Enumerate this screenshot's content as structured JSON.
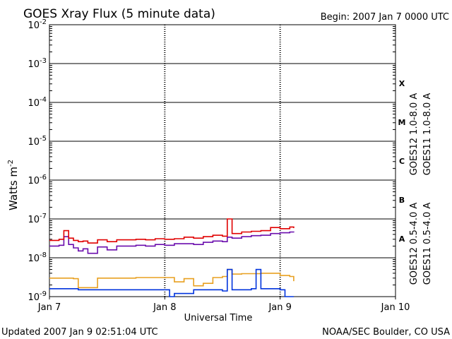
{
  "header": {
    "title": "GOES Xray Flux (5 minute data)",
    "begin": "Begin:  2007 Jan 7 0000 UTC"
  },
  "footer": {
    "updated": "Updated 2007 Jan  9 02:51:04 UTC",
    "credit": "NOAA/SEC Boulder, CO USA"
  },
  "chart_data": {
    "type": "line",
    "title": "GOES Xray Flux (5 minute data)",
    "xlabel": "Universal Time",
    "ylabel": "Watts m",
    "ylabel_sup": "-2",
    "y_scale": "log",
    "ylim": [
      1e-09,
      0.01
    ],
    "xlim": [
      "2007-01-07 00:00",
      "2007-01-10 00:00"
    ],
    "x_ticks": [
      {
        "label": "Jan 7",
        "x": "2007-01-07 00:00"
      },
      {
        "label": "Jan 8",
        "x": "2007-01-08 00:00"
      },
      {
        "label": "Jan 9",
        "x": "2007-01-09 00:00"
      },
      {
        "label": "Jan 10",
        "x": "2007-01-10 00:00"
      }
    ],
    "y_ticks": [
      {
        "base": "10",
        "exp": "-2",
        "value": 0.01
      },
      {
        "base": "10",
        "exp": "-3",
        "value": 0.001
      },
      {
        "base": "10",
        "exp": "-4",
        "value": 0.0001
      },
      {
        "base": "10",
        "exp": "-5",
        "value": 1e-05
      },
      {
        "base": "10",
        "exp": "-6",
        "value": 1e-06
      },
      {
        "base": "10",
        "exp": "-7",
        "value": 1e-07
      },
      {
        "base": "10",
        "exp": "-8",
        "value": 1e-08
      },
      {
        "base": "10",
        "exp": "-9",
        "value": 1e-09
      }
    ],
    "flare_classes": [
      {
        "label": "X",
        "value": 0.00031
      },
      {
        "label": "M",
        "value": 3.1e-05
      },
      {
        "label": "C",
        "value": 3.1e-06
      },
      {
        "label": "B",
        "value": 3.1e-07
      },
      {
        "label": "A",
        "value": 3.1e-08
      }
    ],
    "grid": true,
    "legend_position": "right, rotated",
    "series": [
      {
        "name": "GOES11 1.0-8.0 A",
        "color": "#6a0dad",
        "x": [
          "2007-01-07 00:00",
          "2007-01-07 02:00",
          "2007-01-07 03:00",
          "2007-01-07 04:00",
          "2007-01-07 05:00",
          "2007-01-07 06:00",
          "2007-01-07 07:00",
          "2007-01-07 08:00",
          "2007-01-07 10:00",
          "2007-01-07 12:00",
          "2007-01-07 14:00",
          "2007-01-07 16:00",
          "2007-01-07 18:00",
          "2007-01-07 20:00",
          "2007-01-07 22:00",
          "2007-01-08 00:00",
          "2007-01-08 02:00",
          "2007-01-08 04:00",
          "2007-01-08 06:00",
          "2007-01-08 08:00",
          "2007-01-08 10:00",
          "2007-01-08 12:00",
          "2007-01-08 13:00",
          "2007-01-08 14:00",
          "2007-01-08 16:00",
          "2007-01-08 18:00",
          "2007-01-08 20:00",
          "2007-01-08 22:00",
          "2007-01-09 00:00",
          "2007-01-09 02:00",
          "2007-01-09 02:50"
        ],
        "values": [
          2e-08,
          2.1e-08,
          3.5e-08,
          2.2e-08,
          1.8e-08,
          1.5e-08,
          1.7e-08,
          1.3e-08,
          1.9e-08,
          1.6e-08,
          2e-08,
          2e-08,
          2.1e-08,
          2e-08,
          2.2e-08,
          2.1e-08,
          2.3e-08,
          2.3e-08,
          2.2e-08,
          2.5e-08,
          2.7e-08,
          2.6e-08,
          3.4e-08,
          3.2e-08,
          3.5e-08,
          3.7e-08,
          3.8e-08,
          4.2e-08,
          4.4e-08,
          4.6e-08,
          4.5e-08
        ]
      },
      {
        "name": "GOES12 1.0-8.0 A",
        "color": "#e00000",
        "x": [
          "2007-01-07 00:00",
          "2007-01-07 02:00",
          "2007-01-07 03:00",
          "2007-01-07 04:00",
          "2007-01-07 05:00",
          "2007-01-07 06:00",
          "2007-01-07 07:00",
          "2007-01-07 08:00",
          "2007-01-07 10:00",
          "2007-01-07 12:00",
          "2007-01-07 14:00",
          "2007-01-07 16:00",
          "2007-01-07 18:00",
          "2007-01-07 20:00",
          "2007-01-07 22:00",
          "2007-01-08 00:00",
          "2007-01-08 02:00",
          "2007-01-08 04:00",
          "2007-01-08 06:00",
          "2007-01-08 08:00",
          "2007-01-08 10:00",
          "2007-01-08 12:00",
          "2007-01-08 13:00",
          "2007-01-08 14:00",
          "2007-01-08 16:00",
          "2007-01-08 18:00",
          "2007-01-08 20:00",
          "2007-01-08 22:00",
          "2007-01-09 00:00",
          "2007-01-09 02:00",
          "2007-01-09 02:50"
        ],
        "values": [
          2.8e-08,
          3e-08,
          5e-08,
          3.2e-08,
          2.8e-08,
          2.6e-08,
          2.7e-08,
          2.4e-08,
          2.9e-08,
          2.6e-08,
          2.9e-08,
          2.9e-08,
          3e-08,
          2.9e-08,
          3.1e-08,
          3e-08,
          3.1e-08,
          3.4e-08,
          3.2e-08,
          3.5e-08,
          3.8e-08,
          3.6e-08,
          1e-07,
          4.2e-08,
          4.6e-08,
          4.8e-08,
          5e-08,
          6e-08,
          5.6e-08,
          6.2e-08,
          5.8e-08
        ]
      },
      {
        "name": "GOES11 0.5-4.0 A",
        "color": "#e8a020",
        "x": [
          "2007-01-07 00:00",
          "2007-01-07 04:00",
          "2007-01-07 05:00",
          "2007-01-07 06:00",
          "2007-01-07 08:00",
          "2007-01-07 10:00",
          "2007-01-07 14:00",
          "2007-01-07 18:00",
          "2007-01-07 22:00",
          "2007-01-08 00:00",
          "2007-01-08 02:00",
          "2007-01-08 04:00",
          "2007-01-08 06:00",
          "2007-01-08 08:00",
          "2007-01-08 10:00",
          "2007-01-08 12:00",
          "2007-01-08 13:00",
          "2007-01-08 14:00",
          "2007-01-08 16:00",
          "2007-01-08 18:00",
          "2007-01-08 20:00",
          "2007-01-08 22:00",
          "2007-01-09 00:00",
          "2007-01-09 02:00",
          "2007-01-09 02:50"
        ],
        "values": [
          3e-09,
          3e-09,
          2.9e-09,
          1.7e-09,
          1.7e-09,
          3e-09,
          3e-09,
          3.1e-09,
          3.1e-09,
          3.1e-09,
          2.4e-09,
          2.9e-09,
          1.9e-09,
          2.2e-09,
          3.1e-09,
          3.3e-09,
          5e-09,
          3.8e-09,
          3.9e-09,
          3.9e-09,
          4e-09,
          4e-09,
          3.5e-09,
          3.3e-09,
          2.5e-09
        ]
      },
      {
        "name": "GOES12 0.5-4.0 A",
        "color": "#0033dd",
        "x": [
          "2007-01-07 00:00",
          "2007-01-07 06:00",
          "2007-01-07 12:00",
          "2007-01-07 18:00",
          "2007-01-07 22:00",
          "2007-01-08 00:00",
          "2007-01-08 01:00",
          "2007-01-08 02:00",
          "2007-01-08 06:00",
          "2007-01-08 10:00",
          "2007-01-08 12:00",
          "2007-01-08 13:00",
          "2007-01-08 14:00",
          "2007-01-08 18:00",
          "2007-01-08 19:00",
          "2007-01-08 20:00",
          "2007-01-08 22:00",
          "2007-01-09 00:00",
          "2007-01-09 01:00",
          "2007-01-09 02:00",
          "2007-01-09 02:50"
        ],
        "values": [
          1.6e-09,
          1.5e-09,
          1.5e-09,
          1.5e-09,
          1.5e-09,
          1.5e-09,
          1e-09,
          1.2e-09,
          1.5e-09,
          1.5e-09,
          1.4e-09,
          5e-09,
          1.5e-09,
          1.6e-09,
          5e-09,
          1.6e-09,
          1.6e-09,
          1.5e-09,
          1e-09,
          1e-09,
          1e-09
        ]
      }
    ]
  }
}
